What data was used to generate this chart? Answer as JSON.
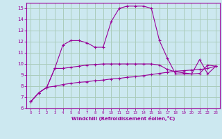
{
  "xlabel": "Windchill (Refroidissement éolien,°C)",
  "background_color": "#cce8f0",
  "grid_color": "#aaccbb",
  "line_color": "#990099",
  "x": [
    0,
    1,
    2,
    3,
    4,
    5,
    6,
    7,
    8,
    9,
    10,
    11,
    12,
    13,
    14,
    15,
    16,
    17,
    18,
    19,
    20,
    21,
    22,
    23
  ],
  "series1": [
    6.6,
    7.4,
    7.9,
    8.0,
    8.15,
    8.25,
    8.35,
    8.4,
    8.5,
    8.55,
    8.65,
    8.7,
    8.8,
    8.85,
    8.95,
    9.05,
    9.15,
    9.25,
    9.35,
    9.4,
    9.45,
    9.5,
    9.6,
    9.8
  ],
  "series2": [
    6.6,
    7.4,
    7.9,
    9.6,
    9.6,
    9.7,
    9.8,
    9.9,
    9.95,
    10.0,
    10.0,
    10.0,
    10.0,
    10.0,
    10.0,
    10.0,
    9.9,
    9.5,
    9.3,
    9.2,
    9.1,
    9.15,
    9.9,
    9.8
  ],
  "series3": [
    6.6,
    7.4,
    7.9,
    9.6,
    11.7,
    12.1,
    12.1,
    11.9,
    11.5,
    11.5,
    13.8,
    15.0,
    15.2,
    15.2,
    15.2,
    15.0,
    12.1,
    10.5,
    9.1,
    9.1,
    9.1,
    10.4,
    9.1,
    9.8
  ],
  "ylim": [
    6,
    15.5
  ],
  "xlim": [
    -0.5,
    23.5
  ],
  "yticks": [
    6,
    7,
    8,
    9,
    10,
    11,
    12,
    13,
    14,
    15
  ],
  "xticks": [
    0,
    1,
    2,
    3,
    4,
    5,
    6,
    7,
    8,
    9,
    10,
    11,
    12,
    13,
    14,
    15,
    16,
    17,
    18,
    19,
    20,
    21,
    22,
    23
  ]
}
